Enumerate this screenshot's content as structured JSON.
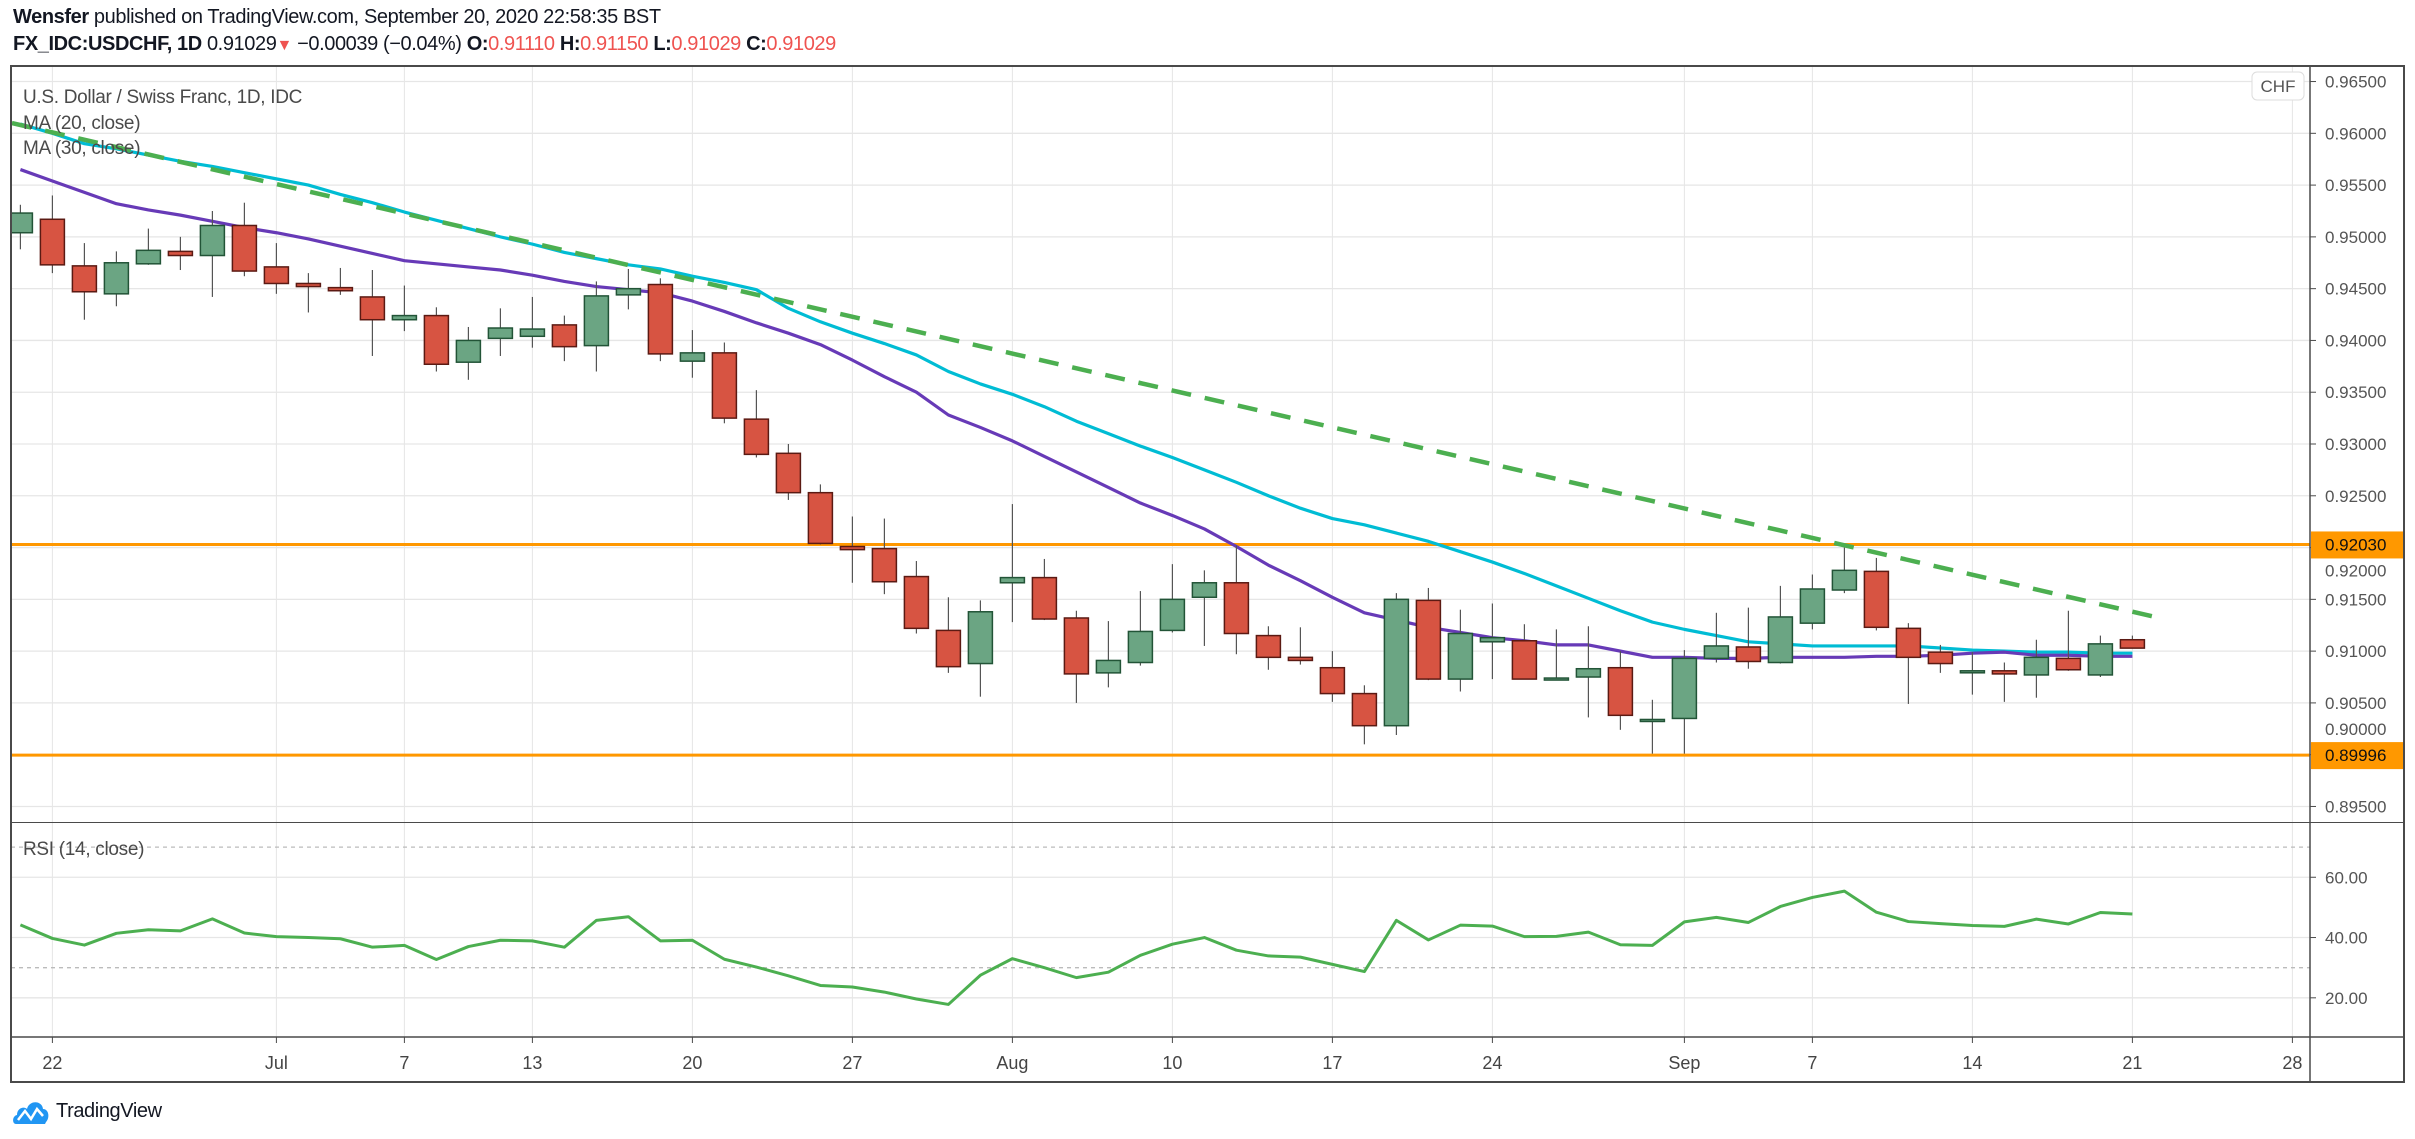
{
  "header": {
    "author": "Wensfer",
    "published": "published on TradingView.com, September 20, 2020 22:58:35 BST",
    "symbol": "FX_IDC:USDCHF, 1D",
    "last": "0.91029",
    "direction_icon": "triangle-down-icon",
    "change": "−0.00039 (−0.04%)",
    "o_label": "O:",
    "o": "0.91110",
    "h_label": "H:",
    "h": "0.91150",
    "l_label": "L:",
    "l": "0.91029",
    "c_label": "C:",
    "c": "0.91029"
  },
  "legend": {
    "title": "U.S. Dollar / Swiss Franc, 1D, IDC",
    "ma20": "MA (20, close)",
    "ma30": "MA (30, close)",
    "rsi": "RSI (14, close)"
  },
  "currency_badge": "CHF",
  "logo_text": "TradingView",
  "colors": {
    "up": "#6ba583",
    "up_border": "#225437",
    "down": "#d75442",
    "down_border": "#5b1a13",
    "ma20": "#673ab7",
    "ma30": "#00bcd4",
    "trendline": "#4caf50",
    "rsi": "#4caf50",
    "level": "#ff9800",
    "grid": "#e6e6e6"
  },
  "chart_data": {
    "type": "candlestick",
    "price_axis": {
      "ylim": [
        0.8935,
        0.9665
      ],
      "ticks": [
        "0.96500",
        "0.96000",
        "0.95500",
        "0.95000",
        "0.94500",
        "0.94000",
        "0.93500",
        "0.93000",
        "0.92500",
        "0.92000",
        "0.91500",
        "0.91000",
        "0.90500",
        "0.90000",
        "0.89500"
      ]
    },
    "horizontal_levels": [
      {
        "value": 0.9203,
        "label": "0.92030"
      },
      {
        "value": 0.89996,
        "label": "0.89996"
      }
    ],
    "trendline": {
      "style": "dashed",
      "points": [
        [
          "2020-06-19",
          0.9608
        ],
        [
          "2020-09-22",
          0.9131
        ]
      ]
    },
    "x_axis": {
      "ticks": [
        {
          "date": "2020-06-22",
          "label": "22"
        },
        {
          "date": "2020-07-01",
          "label": "Jul"
        },
        {
          "date": "2020-07-07",
          "label": "7"
        },
        {
          "date": "2020-07-13",
          "label": "13"
        },
        {
          "date": "2020-07-20",
          "label": "20"
        },
        {
          "date": "2020-07-27",
          "label": "27"
        },
        {
          "date": "2020-08-03",
          "label": "Aug"
        },
        {
          "date": "2020-08-10",
          "label": "10"
        },
        {
          "date": "2020-08-17",
          "label": "17"
        },
        {
          "date": "2020-08-24",
          "label": "24"
        },
        {
          "date": "2020-09-01",
          "label": "Sep"
        },
        {
          "date": "2020-09-07",
          "label": "7"
        },
        {
          "date": "2020-09-14",
          "label": "14"
        },
        {
          "date": "2020-09-21",
          "label": "21"
        },
        {
          "date": "2020-09-28",
          "label": "28"
        }
      ]
    },
    "candles_columns": [
      "date",
      "open",
      "high",
      "low",
      "close"
    ],
    "candles": [
      [
        "2020-06-19",
        0.9504,
        0.9531,
        0.9488,
        0.9523
      ],
      [
        "2020-06-22",
        0.9517,
        0.954,
        0.9465,
        0.9473
      ],
      [
        "2020-06-23",
        0.9472,
        0.9494,
        0.942,
        0.9447
      ],
      [
        "2020-06-24",
        0.9445,
        0.9486,
        0.9433,
        0.9475
      ],
      [
        "2020-06-25",
        0.9474,
        0.9508,
        0.9473,
        0.9487
      ],
      [
        "2020-06-26",
        0.9486,
        0.95,
        0.9468,
        0.9482
      ],
      [
        "2020-06-29",
        0.9482,
        0.9525,
        0.9442,
        0.9511
      ],
      [
        "2020-06-30",
        0.9511,
        0.9533,
        0.9462,
        0.9467
      ],
      [
        "2020-07-01",
        0.9471,
        0.9494,
        0.9445,
        0.9455
      ],
      [
        "2020-07-02",
        0.9455,
        0.9465,
        0.9427,
        0.9452
      ],
      [
        "2020-07-03",
        0.9451,
        0.947,
        0.9444,
        0.9448
      ],
      [
        "2020-07-06",
        0.9442,
        0.9468,
        0.9385,
        0.942
      ],
      [
        "2020-07-07",
        0.942,
        0.9453,
        0.9409,
        0.9424
      ],
      [
        "2020-07-08",
        0.9424,
        0.9432,
        0.937,
        0.9377
      ],
      [
        "2020-07-09",
        0.9379,
        0.9413,
        0.9362,
        0.94
      ],
      [
        "2020-07-10",
        0.9402,
        0.9431,
        0.9385,
        0.9412
      ],
      [
        "2020-07-13",
        0.9404,
        0.9442,
        0.9393,
        0.9411
      ],
      [
        "2020-07-14",
        0.9415,
        0.9424,
        0.938,
        0.9394
      ],
      [
        "2020-07-15",
        0.9395,
        0.9457,
        0.937,
        0.9443
      ],
      [
        "2020-07-16",
        0.9444,
        0.9469,
        0.943,
        0.945
      ],
      [
        "2020-07-17",
        0.9454,
        0.946,
        0.938,
        0.9387
      ],
      [
        "2020-07-20",
        0.938,
        0.941,
        0.9364,
        0.9388
      ],
      [
        "2020-07-21",
        0.9388,
        0.9398,
        0.932,
        0.9325
      ],
      [
        "2020-07-22",
        0.9324,
        0.9352,
        0.9287,
        0.929
      ],
      [
        "2020-07-23",
        0.9291,
        0.93,
        0.9246,
        0.9253
      ],
      [
        "2020-07-24",
        0.9253,
        0.9261,
        0.9203,
        0.9204
      ],
      [
        "2020-07-27",
        0.9201,
        0.923,
        0.9166,
        0.9198
      ],
      [
        "2020-07-28",
        0.9199,
        0.9228,
        0.9155,
        0.9167
      ],
      [
        "2020-07-29",
        0.9172,
        0.9187,
        0.9117,
        0.9122
      ],
      [
        "2020-07-30",
        0.912,
        0.9152,
        0.9079,
        0.9085
      ],
      [
        "2020-07-31",
        0.9088,
        0.9149,
        0.9056,
        0.9138
      ],
      [
        "2020-08-03",
        0.9166,
        0.9242,
        0.9128,
        0.9171
      ],
      [
        "2020-08-04",
        0.9171,
        0.9189,
        0.913,
        0.9131
      ],
      [
        "2020-08-05",
        0.9132,
        0.9139,
        0.905,
        0.9078
      ],
      [
        "2020-08-06",
        0.9079,
        0.9129,
        0.9065,
        0.9091
      ],
      [
        "2020-08-07",
        0.9089,
        0.9158,
        0.9086,
        0.9119
      ],
      [
        "2020-08-10",
        0.912,
        0.9184,
        0.9118,
        0.915
      ],
      [
        "2020-08-11",
        0.9152,
        0.9178,
        0.9105,
        0.9166
      ],
      [
        "2020-08-12",
        0.9166,
        0.9202,
        0.9097,
        0.9117
      ],
      [
        "2020-08-13",
        0.9115,
        0.9124,
        0.9082,
        0.9094
      ],
      [
        "2020-08-14",
        0.9094,
        0.9123,
        0.9087,
        0.9091
      ],
      [
        "2020-08-17",
        0.9084,
        0.91,
        0.9051,
        0.9059
      ],
      [
        "2020-08-18",
        0.9059,
        0.9067,
        0.901,
        0.9028
      ],
      [
        "2020-08-19",
        0.9028,
        0.9156,
        0.9019,
        0.915
      ],
      [
        "2020-08-20",
        0.9149,
        0.9161,
        0.9072,
        0.9073
      ],
      [
        "2020-08-21",
        0.9073,
        0.914,
        0.9061,
        0.9117
      ],
      [
        "2020-08-24",
        0.9109,
        0.9146,
        0.9073,
        0.9113
      ],
      [
        "2020-08-25",
        0.911,
        0.9126,
        0.9073,
        0.9073
      ],
      [
        "2020-08-26",
        0.9074,
        0.9121,
        0.9072,
        0.9074
      ],
      [
        "2020-08-27",
        0.9075,
        0.9124,
        0.9036,
        0.9083
      ],
      [
        "2020-08-28",
        0.9084,
        0.91,
        0.9024,
        0.9038
      ],
      [
        "2020-08-31",
        0.9034,
        0.9053,
        0.9001,
        0.9034
      ],
      [
        "2020-09-01",
        0.9035,
        0.9101,
        0.9001,
        0.9093
      ],
      [
        "2020-09-02",
        0.9093,
        0.9137,
        0.9089,
        0.9105
      ],
      [
        "2020-09-03",
        0.9104,
        0.9142,
        0.9083,
        0.909
      ],
      [
        "2020-09-04",
        0.9089,
        0.9163,
        0.9088,
        0.9133
      ],
      [
        "2020-09-07",
        0.9127,
        0.9174,
        0.9121,
        0.916
      ],
      [
        "2020-09-08",
        0.9159,
        0.92,
        0.9156,
        0.9178
      ],
      [
        "2020-09-09",
        0.9177,
        0.919,
        0.912,
        0.9123
      ],
      [
        "2020-09-10",
        0.9122,
        0.9127,
        0.9049,
        0.9094
      ],
      [
        "2020-09-11",
        0.9099,
        0.9106,
        0.9079,
        0.9088
      ],
      [
        "2020-09-14",
        0.9081,
        0.9099,
        0.9058,
        0.9081
      ],
      [
        "2020-09-15",
        0.9081,
        0.9089,
        0.9051,
        0.9078
      ],
      [
        "2020-09-16",
        0.9077,
        0.9111,
        0.9055,
        0.9094
      ],
      [
        "2020-09-17",
        0.9093,
        0.9139,
        0.9081,
        0.9082
      ],
      [
        "2020-09-18",
        0.9077,
        0.9115,
        0.9075,
        0.9107
      ],
      [
        "2020-09-21",
        0.9111,
        0.9115,
        0.91029,
        0.91029
      ]
    ],
    "ma20": [
      0.9565,
      0.9554,
      0.9543,
      0.9532,
      0.9526,
      0.9521,
      0.9515,
      0.9509,
      0.9504,
      0.9498,
      0.9491,
      0.9484,
      0.9477,
      0.9474,
      0.9471,
      0.9468,
      0.9463,
      0.9457,
      0.9452,
      0.9449,
      0.9446,
      0.9438,
      0.9428,
      0.9417,
      0.9407,
      0.9396,
      0.9381,
      0.9365,
      0.935,
      0.9328,
      0.9316,
      0.9303,
      0.9288,
      0.9273,
      0.9258,
      0.9243,
      0.9231,
      0.9218,
      0.9201,
      0.9183,
      0.9168,
      0.9152,
      0.9137,
      0.913,
      0.9123,
      0.9118,
      0.9113,
      0.911,
      0.9106,
      0.9106,
      0.91,
      0.9094,
      0.9094,
      0.9093,
      0.9093,
      0.9094,
      0.9094,
      0.9094,
      0.9095,
      0.9095,
      0.9096,
      0.9098,
      0.9099,
      0.9096,
      0.9096,
      0.9095,
      0.9095
    ],
    "ma30": [
      0.9609,
      0.96,
      0.959,
      0.9585,
      0.9579,
      0.9573,
      0.9568,
      0.9562,
      0.9556,
      0.955,
      0.9541,
      0.9533,
      0.9524,
      0.9516,
      0.9508,
      0.95,
      0.9493,
      0.9485,
      0.9479,
      0.9473,
      0.9469,
      0.9462,
      0.9456,
      0.9449,
      0.9431,
      0.9418,
      0.9407,
      0.9397,
      0.9386,
      0.937,
      0.9358,
      0.9348,
      0.9336,
      0.9322,
      0.931,
      0.9298,
      0.9287,
      0.9275,
      0.9263,
      0.925,
      0.9238,
      0.9228,
      0.9222,
      0.9214,
      0.9206,
      0.9196,
      0.9186,
      0.9175,
      0.9163,
      0.9151,
      0.9139,
      0.9128,
      0.9121,
      0.9115,
      0.9109,
      0.9107,
      0.9105,
      0.9105,
      0.9105,
      0.9105,
      0.9103,
      0.9101,
      0.91,
      0.9099,
      0.9099,
      0.9098,
      0.9098
    ],
    "rsi": {
      "ticks": [
        "60.00",
        "40.00",
        "20.00"
      ],
      "ylim": [
        7,
        78
      ],
      "bands": [
        70,
        30
      ],
      "values": [
        44.2,
        39.7,
        37.5,
        41.4,
        42.6,
        42.2,
        46.2,
        41.5,
        40.3,
        40.0,
        39.6,
        36.8,
        37.4,
        32.7,
        37.0,
        39.1,
        38.9,
        36.8,
        45.7,
        46.9,
        38.9,
        39.1,
        32.8,
        30.2,
        27.3,
        24.1,
        23.6,
        21.9,
        19.6,
        17.8,
        27.5,
        33.0,
        30.0,
        26.7,
        28.5,
        34.1,
        37.8,
        40.0,
        35.8,
        33.9,
        33.5,
        31.1,
        28.7,
        45.7,
        39.2,
        44.1,
        43.8,
        40.3,
        40.4,
        41.8,
        37.6,
        37.4,
        45.2,
        46.7,
        45.0,
        50.3,
        53.3,
        55.4,
        48.4,
        45.3,
        44.6,
        44.0,
        43.7,
        46.1,
        44.5,
        48.3,
        47.8
      ]
    }
  }
}
